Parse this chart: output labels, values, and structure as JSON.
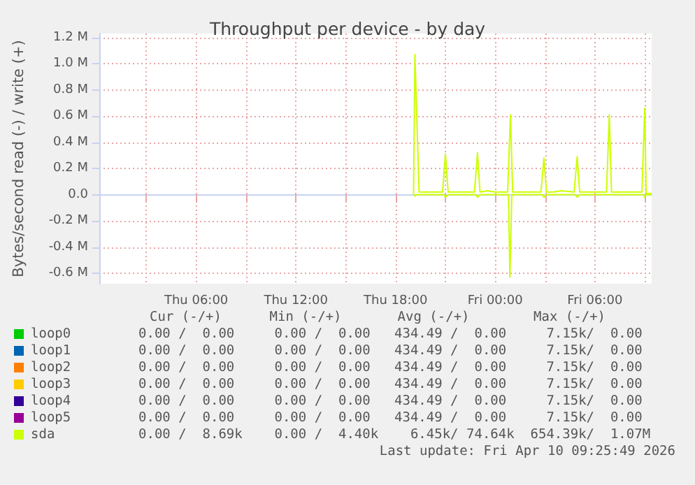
{
  "chart_data": {
    "type": "line",
    "title": "Throughput per device - by day",
    "ylabel": "Bytes/second read (-) / write (+)",
    "xlim": [
      "2026-04-09T00:10",
      "2026-04-10T09:25"
    ],
    "xticks": [
      {
        "value": "2026-04-09T03:00",
        "label": null
      },
      {
        "value": "2026-04-09T06:00",
        "label": "Thu 06:00"
      },
      {
        "value": "2026-04-09T09:00",
        "label": null
      },
      {
        "value": "2026-04-09T12:00",
        "label": "Thu 12:00"
      },
      {
        "value": "2026-04-09T15:00",
        "label": null
      },
      {
        "value": "2026-04-09T18:00",
        "label": "Thu 18:00"
      },
      {
        "value": "2026-04-09T21:00",
        "label": null
      },
      {
        "value": "2026-04-10T00:00",
        "label": "Fri 00:00"
      },
      {
        "value": "2026-04-10T03:00",
        "label": null
      },
      {
        "value": "2026-04-10T06:00",
        "label": "Fri 06:00"
      },
      {
        "value": "2026-04-10T09:00",
        "label": null
      }
    ],
    "ylim": [
      -680000,
      1230000
    ],
    "yticks": [
      {
        "value": -600000,
        "label": "-0.6 M"
      },
      {
        "value": -400000,
        "label": "-0.4 M"
      },
      {
        "value": -200000,
        "label": "-0.2 M"
      },
      {
        "value": 0,
        "label": "0.0"
      },
      {
        "value": 200000,
        "label": "0.2 M"
      },
      {
        "value": 400000,
        "label": "0.4 M"
      },
      {
        "value": 600000,
        "label": "0.6 M"
      },
      {
        "value": 800000,
        "label": "0.8 M"
      },
      {
        "value": 1000000,
        "label": "1.0 M"
      },
      {
        "value": 1200000,
        "label": "1.2 M"
      }
    ],
    "grid": true,
    "legend": "bottom left",
    "series": [
      {
        "name": "loop0",
        "color": "#00cc00"
      },
      {
        "name": "loop1",
        "color": "#0066b3"
      },
      {
        "name": "loop2",
        "color": "#ff8000"
      },
      {
        "name": "loop3",
        "color": "#ffcc00"
      },
      {
        "name": "loop4",
        "color": "#330099"
      },
      {
        "name": "loop5",
        "color": "#990099"
      },
      {
        "name": "sda",
        "color": "#ccff00",
        "x": [
          "2026-04-09T19:05",
          "2026-04-09T19:10",
          "2026-04-09T19:25",
          "2026-04-09T19:40",
          "2026-04-09T20:00",
          "2026-04-09T20:40",
          "2026-04-09T20:50",
          "2026-04-09T21:00",
          "2026-04-09T21:10",
          "2026-04-09T21:30",
          "2026-04-09T22:00",
          "2026-04-09T22:45",
          "2026-04-09T22:56",
          "2026-04-09T23:05",
          "2026-04-09T23:30",
          "2026-04-10T00:00",
          "2026-04-10T00:45",
          "2026-04-10T00:55",
          "2026-04-10T01:03",
          "2026-04-10T01:30",
          "2026-04-10T02:00",
          "2026-04-10T02:45",
          "2026-04-10T02:56",
          "2026-04-10T03:05",
          "2026-04-10T03:30",
          "2026-04-10T04:00",
          "2026-04-10T04:45",
          "2026-04-10T04:56",
          "2026-04-10T05:05",
          "2026-04-10T05:40",
          "2026-04-10T06:00",
          "2026-04-10T06:42",
          "2026-04-10T06:52",
          "2026-04-10T07:00",
          "2026-04-10T07:40",
          "2026-04-10T08:00",
          "2026-04-10T08:50",
          "2026-04-10T09:00",
          "2026-04-10T09:05",
          "2026-04-10T09:25"
        ],
        "values": [
          0,
          1070000,
          20000,
          20000,
          20000,
          20000,
          20000,
          310000,
          20000,
          20000,
          20000,
          20000,
          320000,
          20000,
          30000,
          20000,
          20000,
          610000,
          20000,
          20000,
          20000,
          20000,
          280000,
          20000,
          20000,
          30000,
          20000,
          290000,
          20000,
          20000,
          20000,
          20000,
          610000,
          20000,
          20000,
          20000,
          20000,
          660000,
          10000,
          10000
        ]
      },
      {
        "color": "#ccff00",
        "x": [
          "2026-04-09T19:05",
          "2026-04-09T19:10",
          "2026-04-09T19:15",
          "2026-04-09T20:55",
          "2026-04-09T21:00",
          "2026-04-09T21:10",
          "2026-04-09T22:50",
          "2026-04-09T22:56",
          "2026-04-09T23:05",
          "2026-04-10T00:48",
          "2026-04-10T00:53",
          "2026-04-10T01:00",
          "2026-04-10T02:50",
          "2026-04-10T02:56",
          "2026-04-10T03:05",
          "2026-04-10T04:50",
          "2026-04-10T04:56",
          "2026-04-10T05:05",
          "2026-04-10T08:55",
          "2026-04-10T09:00",
          "2026-04-10T09:05",
          "2026-04-10T09:25"
        ],
        "values": [
          0,
          -10000,
          0,
          0,
          -20000,
          0,
          0,
          -20000,
          0,
          0,
          -630000,
          0,
          0,
          -20000,
          0,
          0,
          -20000,
          0,
          0,
          -20000,
          0,
          0
        ]
      }
    ],
    "annotations": [
      "Cur (-/+)      Min (-/+)       Avg (-/+)        Max (-/+)",
      "0.00 /  0.00     0.00 /  0.00   434.49 /  0.00     7.15k/  0.00",
      "0.00 /  0.00     0.00 /  0.00   434.49 /  0.00     7.15k/  0.00",
      "0.00 /  0.00     0.00 /  0.00   434.49 /  0.00     7.15k/  0.00",
      "0.00 /  0.00     0.00 /  0.00   434.49 /  0.00     7.15k/  0.00",
      "0.00 /  0.00     0.00 /  0.00   434.49 /  0.00     7.15k/  0.00",
      "0.00 /  0.00     0.00 /  0.00   434.49 /  0.00     7.15k/  0.00",
      "0.00 /  8.69k    0.00 /  4.40k    6.45k/ 74.64k  654.39k/  1.07M",
      "Last update: Fri Apr 10 09:25:49 2026"
    ]
  }
}
